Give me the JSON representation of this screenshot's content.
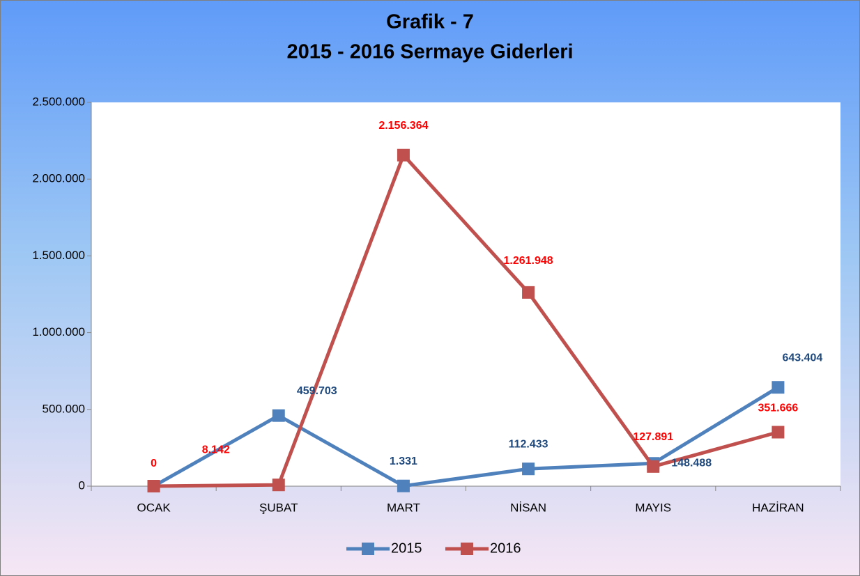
{
  "chart_data": {
    "type": "line",
    "title": "Grafik - 7",
    "subtitle": "2015 - 2016 Sermaye Giderleri",
    "categories": [
      "OCAK",
      "ŞUBAT",
      "MART",
      "NİSAN",
      "MAYIS",
      "HAZİRAN"
    ],
    "series": [
      {
        "name": "2015",
        "color": "#4f81bd",
        "label_color": "#1f497d",
        "values": [
          0,
          459703,
          1331,
          112433,
          148488,
          643404
        ],
        "value_labels": [
          null,
          "459.703",
          "1.331",
          "112.433",
          "148.488",
          "643.404"
        ]
      },
      {
        "name": "2016",
        "color": "#c0504d",
        "label_color": "#ff0000",
        "values": [
          0,
          8142,
          2156364,
          1261948,
          127891,
          351666
        ],
        "value_labels": [
          "0",
          "8.142",
          "2.156.364",
          "1.261.948",
          "127.891",
          "351.666"
        ]
      }
    ],
    "ylim": [
      0,
      2500000
    ],
    "yticks": [
      0,
      {
        "value": 500000,
        "label": "500.000"
      },
      {
        "value": 1000000,
        "label": "1.000.000"
      },
      {
        "value": 1500000,
        "label": "1.500.000"
      },
      {
        "value": 2000000,
        "label": "2.000.000"
      },
      {
        "value": 2500000,
        "label": "2.500.000"
      }
    ],
    "grid": false,
    "legend": "bottom"
  }
}
